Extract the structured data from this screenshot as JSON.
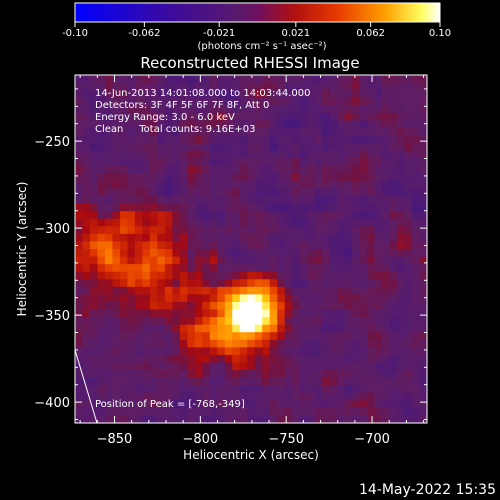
{
  "colorbar": {
    "ticks": [
      "-0.10",
      "-0.062",
      "-0.021",
      "0.021",
      "0.062",
      "0.10"
    ],
    "units": "(photons cm⁻² s⁻¹ asec⁻²)",
    "range": [
      -0.1,
      0.1
    ]
  },
  "title": "Reconstructed RHESSI Image",
  "info": {
    "time": "14-Jun-2013 14:01:08.000 to 14:03:44.000",
    "detectors": "Detectors: 3F 4F 5F 6F 7F 8F, Att 0",
    "energy": "Energy Range: 3.0 - 6.0 keV",
    "clean": "Clean     Total counts: 9.16E+03",
    "peak": "Position of Peak = [-768,-349]"
  },
  "footer_date": "14-May-2022 15:35",
  "chart_data": {
    "type": "heatmap",
    "title": "Reconstructed RHESSI Image",
    "xlabel": "Heliocentric X (arcsec)",
    "ylabel": "Heliocentric Y (arcsec)",
    "xlim": [
      -873,
      -668
    ],
    "ylim": [
      -412,
      -212
    ],
    "xticks": [
      -850,
      -800,
      -750,
      -700
    ],
    "yticks": [
      -250,
      -300,
      -350,
      -400
    ],
    "peak": [
      -768,
      -349
    ],
    "sources": [
      {
        "x": -768,
        "y": -349,
        "amplitude": 0.1
      },
      {
        "x": -785,
        "y": -360,
        "amplitude": 0.06
      },
      {
        "x": -855,
        "y": -320,
        "amplitude": 0.045
      },
      {
        "x": -820,
        "y": -330,
        "amplitude": 0.035
      },
      {
        "x": -835,
        "y": -300,
        "amplitude": 0.02
      }
    ],
    "colormap": [
      "#0000ff",
      "#3a0aa0",
      "#5a2080",
      "#6e1e6e",
      "#a01010",
      "#e03000",
      "#ff7a00",
      "#ffd000",
      "#ffffa0",
      "#ffffff"
    ]
  }
}
